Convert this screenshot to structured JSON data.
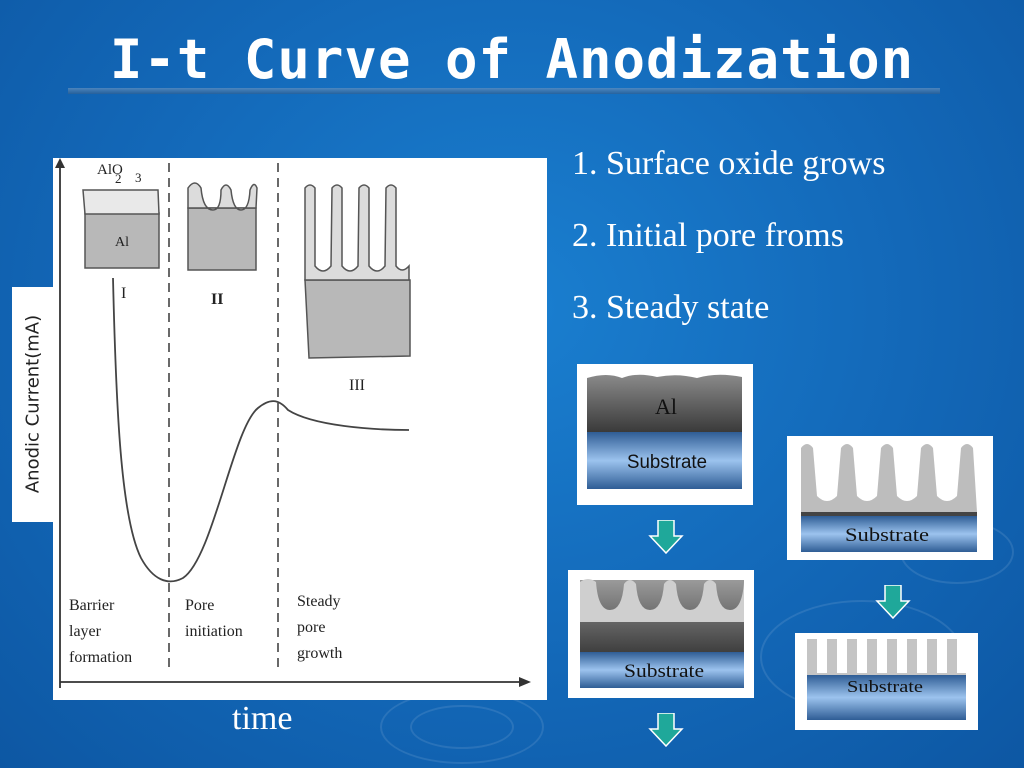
{
  "title": "I-t Curve of Anodization",
  "steps": [
    "1. Surface oxide grows",
    "2. Initial pore froms",
    "3. Steady state"
  ],
  "plot": {
    "ylabel": "Anodic Current(mA)",
    "xlabel": "time",
    "stage_numerals": [
      "I",
      "II",
      "III"
    ],
    "stage_labels": [
      [
        "Barrier",
        "layer",
        "formation"
      ],
      [
        "Pore",
        "initiation"
      ],
      [
        "Steady",
        "pore",
        "growth"
      ]
    ],
    "inset_labels": {
      "oxide": "Al",
      "oxide_sub1": "2",
      "oxide_mid": "O",
      "oxide_sub2": "3",
      "metal": "Al"
    }
  },
  "schematics": {
    "step1_al": "Al",
    "substrate": "Substrate"
  },
  "colors": {
    "arrow_fill": "#1fa89a",
    "substrate_blue": "#7fb0e6",
    "al_dark": "#4a4a4a"
  }
}
